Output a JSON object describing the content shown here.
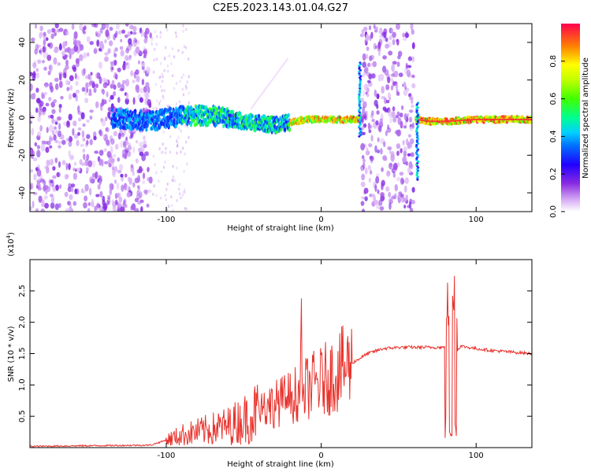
{
  "title": "C2E5.2023.143.01.04.G27",
  "chart_data": [
    {
      "type": "heatmap",
      "xlabel": "Height of straight line (km)",
      "ylabel": "Frequency (Hz)",
      "xlim": [
        -188,
        136
      ],
      "ylim": [
        -50,
        50
      ],
      "xticks": [
        -100,
        0,
        100
      ],
      "yticks": [
        -40,
        -20,
        0,
        20,
        40
      ],
      "colorbar": {
        "label": "Normalized spectral amplitude",
        "range": [
          0.0,
          1.0
        ],
        "ticks": [
          0.0,
          0.2,
          0.4,
          0.6,
          0.8
        ],
        "tick_labels": [
          "0.0",
          "0.2",
          "0.4",
          "0.6",
          "0.8"
        ]
      },
      "ridge": {
        "height_km": [
          -135,
          -110,
          -90,
          -70,
          -50,
          -30,
          -10,
          0,
          10,
          20,
          62,
          70,
          80,
          100,
          136
        ],
        "frequency_hz": [
          0,
          -2,
          1,
          1,
          -2,
          -4,
          -1,
          -1,
          -1,
          -1,
          -1,
          -2,
          -2,
          -1,
          -1
        ]
      },
      "noise_regions_km": [
        [
          -188,
          -110
        ],
        [
          26,
          60
        ]
      ],
      "spikes": [
        {
          "height_km": 25,
          "frequency_hz_range": [
            -10,
            30
          ]
        },
        {
          "height_km": 62,
          "frequency_hz_range": [
            -33,
            8
          ]
        }
      ]
    },
    {
      "type": "line",
      "xlabel": "Height of straight line (km)",
      "ylabel": "SNR (10 * v/v)",
      "scale_label": "(x10",
      "scale_exponent": "4",
      "scale_suffix": ")",
      "xlim": [
        -188,
        136
      ],
      "ylim": [
        0,
        30000
      ],
      "xticks": [
        -100,
        0,
        100
      ],
      "yticks": [
        5000,
        10000,
        15000,
        20000,
        25000
      ],
      "ytick_labels": [
        "0.5",
        "1.0",
        "1.5",
        "2.0",
        "2.5"
      ],
      "series": [
        {
          "name": "SNR",
          "color": "#e8332d",
          "x": [
            -188,
            -150,
            -110,
            -100,
            -90,
            -80,
            -70,
            -60,
            -50,
            -40,
            -30,
            -20,
            -10,
            0,
            10,
            20,
            30,
            40,
            50,
            60,
            70,
            80,
            82,
            84,
            86,
            90,
            100,
            110,
            120,
            136
          ],
          "y": [
            200,
            300,
            400,
            1200,
            2000,
            2500,
            3000,
            3500,
            4500,
            6000,
            7000,
            8000,
            9500,
            10500,
            12000,
            13500,
            15000,
            15800,
            16000,
            16000,
            16000,
            16000,
            28000,
            500,
            15000,
            16200,
            15800,
            15500,
            15300,
            15000
          ]
        }
      ]
    }
  ]
}
